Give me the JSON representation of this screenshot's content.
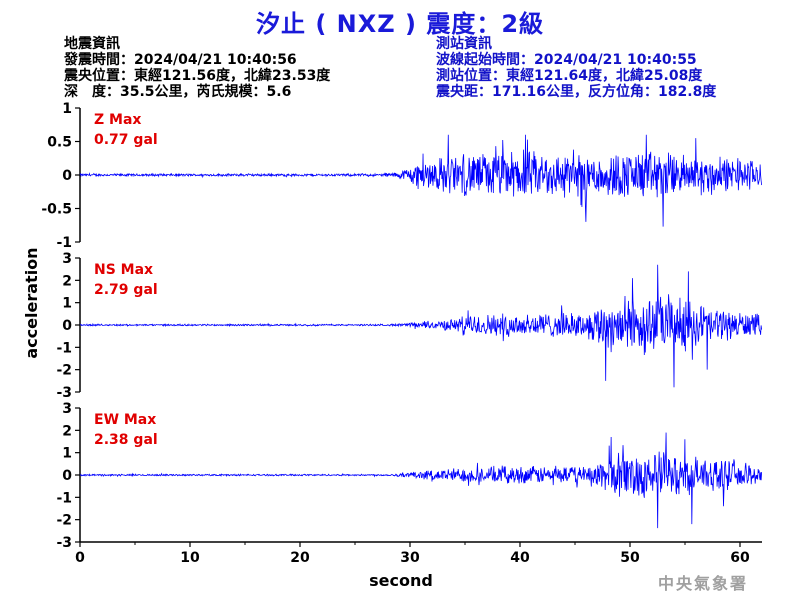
{
  "title": "汐止 ( NXZ ) 震度：2級",
  "quake_info": {
    "heading": "地震資訊",
    "origin_time": "發震時間：2024/04/21 10:40:56",
    "epicenter": "震央位置：東經121.56度，北緯23.53度",
    "depth_magnitude": "深　度：35.5公里，芮氏規模：5.6"
  },
  "station_info": {
    "heading": "測站資訊",
    "wave_start": "波線起始時間：2024/04/21 10:40:55",
    "location": "測站位置：東經121.64度，北緯25.08度",
    "distance": "震央距：171.16公里，反方位角：182.8度"
  },
  "agency": "中央氣象署",
  "chart_data": [
    {
      "type": "line",
      "component": "Z",
      "max_label": "Z Max",
      "max_value": "0.77 gal",
      "ylim": [
        -1,
        1
      ],
      "yticks": [
        -1,
        -0.5,
        0,
        0.5,
        1
      ],
      "ytick_labels": [
        "-1",
        "-0.5",
        "0",
        "0.5",
        "1"
      ],
      "color": "#0000ff",
      "envelope": {
        "t": [
          0,
          27,
          29,
          31,
          35,
          40,
          45,
          52,
          57,
          62
        ],
        "amp": [
          0.02,
          0.02,
          0.05,
          0.25,
          0.35,
          0.4,
          0.35,
          0.4,
          0.3,
          0.25
        ]
      },
      "peaks": [
        [
          33.5,
          0.6
        ],
        [
          40.5,
          0.6
        ],
        [
          46,
          -0.7
        ],
        [
          51.5,
          0.6
        ],
        [
          53,
          -0.77
        ],
        [
          56,
          0.55
        ]
      ]
    },
    {
      "type": "line",
      "component": "NS",
      "max_label": "NS Max",
      "max_value": "2.79 gal",
      "ylim": [
        -3,
        3
      ],
      "yticks": [
        -3,
        -2,
        -1,
        0,
        1,
        2,
        3
      ],
      "ytick_labels": [
        "-3",
        "-2",
        "-1",
        "0",
        "1",
        "2",
        "3"
      ],
      "color": "#0000ff",
      "envelope": {
        "t": [
          0,
          28,
          30,
          34,
          35,
          40,
          46,
          48,
          52,
          55,
          58,
          62
        ],
        "amp": [
          0.04,
          0.04,
          0.1,
          0.3,
          0.5,
          0.6,
          0.6,
          1.3,
          1.5,
          1.3,
          0.8,
          0.5
        ]
      },
      "peaks": [
        [
          47.8,
          -2.5
        ],
        [
          50.2,
          2.1
        ],
        [
          52.5,
          2.7
        ],
        [
          54,
          -2.79
        ],
        [
          55.3,
          2.4
        ],
        [
          57,
          -2.0
        ]
      ]
    },
    {
      "type": "line",
      "component": "EW",
      "max_label": "EW Max",
      "max_value": "2.38 gal",
      "ylim": [
        -3,
        3
      ],
      "yticks": [
        -3,
        -2,
        -1,
        0,
        1,
        2,
        3
      ],
      "ytick_labels": [
        "-3",
        "-2",
        "-1",
        "0",
        "1",
        "2",
        "3"
      ],
      "color": "#0000ff",
      "envelope": {
        "t": [
          0,
          28,
          30,
          34,
          40,
          46,
          48,
          52,
          56,
          60,
          62
        ],
        "amp": [
          0.04,
          0.04,
          0.15,
          0.35,
          0.45,
          0.4,
          1.0,
          1.2,
          0.9,
          0.6,
          0.5
        ]
      },
      "peaks": [
        [
          48.3,
          1.7
        ],
        [
          52.5,
          -2.38
        ],
        [
          53.3,
          1.9
        ],
        [
          55,
          1.6
        ],
        [
          55.6,
          -2.2
        ],
        [
          58.5,
          -1.4
        ]
      ]
    }
  ],
  "x_axis": {
    "label": "second",
    "xlim": [
      0,
      62
    ],
    "ticks": [
      0,
      10,
      20,
      30,
      40,
      50,
      60
    ],
    "tick_labels": [
      "0",
      "10",
      "20",
      "30",
      "40",
      "50",
      "60"
    ]
  },
  "y_axis_label": "acceleration"
}
